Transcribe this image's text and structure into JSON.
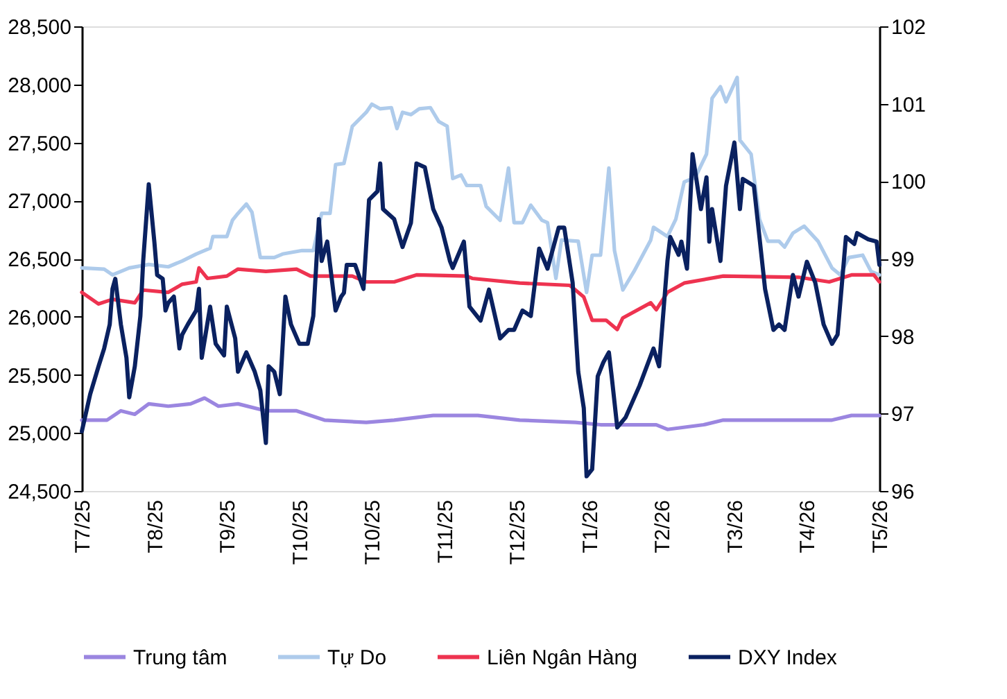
{
  "chart_data": {
    "type": "line",
    "xlim": [
      "2025-07-19",
      "2026-05-01"
    ],
    "xticks": [
      {
        "value": "2025-07-19",
        "label": "T7/25"
      },
      {
        "value": "2025-08-14",
        "label": "T8/25"
      },
      {
        "value": "2025-09-09",
        "label": "T9/25"
      },
      {
        "value": "2025-10-05",
        "label": "T10/25"
      },
      {
        "value": "2025-10-31",
        "label": "T10/25"
      },
      {
        "value": "2025-11-26",
        "label": "T11/25"
      },
      {
        "value": "2025-12-22",
        "label": "T12/25"
      },
      {
        "value": "2026-01-17",
        "label": "T1/26"
      },
      {
        "value": "2026-02-12",
        "label": "T2/26"
      },
      {
        "value": "2026-03-10",
        "label": "T3/26"
      },
      {
        "value": "2026-04-05",
        "label": "T4/26"
      },
      {
        "value": "2026-05-01",
        "label": "T5/26"
      }
    ],
    "ylim": [
      24500,
      28500
    ],
    "yticks": [
      {
        "value": 24500,
        "label": "24,500"
      },
      {
        "value": 25000,
        "label": "25,000"
      },
      {
        "value": 25500,
        "label": "25,500"
      },
      {
        "value": 26000,
        "label": "26,000"
      },
      {
        "value": 26500,
        "label": "26,500"
      },
      {
        "value": 27000,
        "label": "27,000"
      },
      {
        "value": 27500,
        "label": "27,500"
      },
      {
        "value": 28000,
        "label": "28,000"
      },
      {
        "value": 28500,
        "label": "28,500"
      }
    ],
    "y2lim": [
      96,
      102
    ],
    "y2ticks": [
      96,
      97,
      98,
      99,
      100,
      101,
      102
    ],
    "grid": false,
    "legend": "bottom",
    "marker": "none",
    "line_style": "solid",
    "series": [
      {
        "name": "Trung tâm",
        "color": "#9b86e0",
        "x": [
          "2025-07-19",
          "2025-07-28",
          "2025-08-02",
          "2025-08-07",
          "2025-08-12",
          "2025-08-19",
          "2025-08-27",
          "2025-09-01",
          "2025-09-06",
          "2025-09-13",
          "2025-09-23",
          "2025-10-04",
          "2025-10-14",
          "2025-10-29",
          "2025-11-08",
          "2025-11-22",
          "2025-12-08",
          "2025-12-23",
          "2026-01-12",
          "2026-01-21",
          "2026-02-10",
          "2026-02-14",
          "2026-02-27",
          "2026-03-06",
          "2026-04-01",
          "2026-04-14",
          "2026-04-21",
          "2026-05-01"
        ],
        "values": [
          25110,
          25110,
          25190,
          25160,
          25250,
          25230,
          25250,
          25300,
          25230,
          25250,
          25190,
          25190,
          25110,
          25090,
          25110,
          25150,
          25150,
          25110,
          25090,
          25070,
          25070,
          25030,
          25070,
          25110,
          25110,
          25110,
          25150,
          25150
        ]
      },
      {
        "name": "Tự Do",
        "color": "#aecbeb",
        "x": [
          "2025-07-19",
          "2025-07-27",
          "2025-07-30",
          "2025-08-05",
          "2025-08-12",
          "2025-08-19",
          "2025-08-24",
          "2025-08-29",
          "2025-09-03",
          "2025-09-04",
          "2025-09-09",
          "2025-09-11",
          "2025-09-13",
          "2025-09-16",
          "2025-09-18",
          "2025-09-21",
          "2025-09-26",
          "2025-09-29",
          "2025-10-06",
          "2025-10-10",
          "2025-10-13",
          "2025-10-16",
          "2025-10-18",
          "2025-10-21",
          "2025-10-24",
          "2025-10-29",
          "2025-10-31",
          "2025-11-03",
          "2025-11-07",
          "2025-11-09",
          "2025-11-11",
          "2025-11-14",
          "2025-11-17",
          "2025-11-21",
          "2025-11-24",
          "2025-11-27",
          "2025-11-29",
          "2025-12-02",
          "2025-12-04",
          "2025-12-09",
          "2025-12-11",
          "2025-12-16",
          "2025-12-19",
          "2025-12-21",
          "2025-12-24",
          "2025-12-27",
          "2025-12-31",
          "2026-01-02",
          "2026-01-05",
          "2026-01-07",
          "2026-01-13",
          "2026-01-16",
          "2026-01-18",
          "2026-01-21",
          "2026-01-24",
          "2026-01-26",
          "2026-01-29",
          "2026-02-02",
          "2026-02-08",
          "2026-02-09",
          "2026-02-14",
          "2026-02-17",
          "2026-02-20",
          "2026-02-24",
          "2026-02-28",
          "2026-03-02",
          "2026-03-05",
          "2026-03-07",
          "2026-03-11",
          "2026-03-12",
          "2026-03-16",
          "2026-03-19",
          "2026-03-22",
          "2026-03-26",
          "2026-03-28",
          "2026-03-31",
          "2026-04-04",
          "2026-04-09",
          "2026-04-14",
          "2026-04-17",
          "2026-04-20",
          "2026-04-25",
          "2026-04-28",
          "2026-05-01"
        ],
        "values": [
          26420,
          26410,
          26360,
          26420,
          26450,
          26430,
          26480,
          26540,
          26590,
          26690,
          26690,
          26830,
          26890,
          26970,
          26900,
          26510,
          26510,
          26540,
          26570,
          26570,
          26890,
          26890,
          27310,
          27320,
          27640,
          27760,
          27830,
          27790,
          27800,
          27620,
          27760,
          27740,
          27790,
          27800,
          27680,
          27640,
          27190,
          27220,
          27130,
          27130,
          26950,
          26830,
          27280,
          26810,
          26810,
          26960,
          26830,
          26810,
          26330,
          26660,
          26650,
          26210,
          26530,
          26530,
          27280,
          26570,
          26230,
          26390,
          26660,
          26770,
          26690,
          26840,
          27160,
          27200,
          27400,
          27880,
          27980,
          27850,
          28060,
          27520,
          27400,
          26840,
          26650,
          26650,
          26600,
          26720,
          26780,
          26650,
          26420,
          26360,
          26510,
          26530,
          26390,
          26360
        ]
      },
      {
        "name": "Liên Ngân Hàng",
        "color": "#ee3350",
        "x": [
          "2025-07-19",
          "2025-07-25",
          "2025-07-30",
          "2025-08-07",
          "2025-08-10",
          "2025-08-19",
          "2025-08-24",
          "2025-08-29",
          "2025-08-30",
          "2025-09-02",
          "2025-09-09",
          "2025-09-13",
          "2025-09-23",
          "2025-10-04",
          "2025-10-09",
          "2025-10-24",
          "2025-10-29",
          "2025-11-08",
          "2025-11-16",
          "2025-12-04",
          "2025-12-06",
          "2025-12-23",
          "2026-01-10",
          "2026-01-15",
          "2026-01-18",
          "2026-01-23",
          "2026-01-27",
          "2026-01-29",
          "2026-02-08",
          "2026-02-10",
          "2026-02-14",
          "2026-02-20",
          "2026-03-06",
          "2026-04-02",
          "2026-04-13",
          "2026-04-21",
          "2026-04-29",
          "2026-05-01"
        ],
        "values": [
          26210,
          26110,
          26150,
          26120,
          26230,
          26210,
          26280,
          26300,
          26420,
          26330,
          26350,
          26410,
          26390,
          26410,
          26350,
          26350,
          26300,
          26300,
          26360,
          26350,
          26330,
          26290,
          26270,
          26170,
          25970,
          25970,
          25890,
          25990,
          26120,
          26060,
          26210,
          26290,
          26350,
          26340,
          26300,
          26360,
          26360,
          26300
        ]
      },
      {
        "name": "DXY Index",
        "color": "#0a2160",
        "axis": "y2",
        "x": [
          "2025-07-19",
          "2025-07-22",
          "2025-07-25",
          "2025-07-27",
          "2025-07-29",
          "2025-07-30",
          "2025-07-31",
          "2025-08-02",
          "2025-08-04",
          "2025-08-05",
          "2025-08-07",
          "2025-08-09",
          "2025-08-10",
          "2025-08-12",
          "2025-08-14",
          "2025-08-15",
          "2025-08-17",
          "2025-08-18",
          "2025-08-19",
          "2025-08-21",
          "2025-08-23",
          "2025-08-24",
          "2025-08-26",
          "2025-08-29",
          "2025-08-30",
          "2025-08-31",
          "2025-09-03",
          "2025-09-05",
          "2025-09-08",
          "2025-09-09",
          "2025-09-12",
          "2025-09-13",
          "2025-09-16",
          "2025-09-19",
          "2025-09-21",
          "2025-09-23",
          "2025-09-24",
          "2025-09-26",
          "2025-09-28",
          "2025-09-30",
          "2025-10-02",
          "2025-10-05",
          "2025-10-08",
          "2025-10-10",
          "2025-10-12",
          "2025-10-13",
          "2025-10-15",
          "2025-10-18",
          "2025-10-20",
          "2025-10-21",
          "2025-10-22",
          "2025-10-25",
          "2025-10-28",
          "2025-10-30",
          "2025-11-02",
          "2025-11-03",
          "2025-11-04",
          "2025-11-08",
          "2025-11-11",
          "2025-11-14",
          "2025-11-16",
          "2025-11-19",
          "2025-11-22",
          "2025-11-25",
          "2025-11-28",
          "2025-11-29",
          "2025-12-03",
          "2025-12-05",
          "2025-12-09",
          "2025-12-12",
          "2025-12-16",
          "2025-12-19",
          "2025-12-21",
          "2025-12-24",
          "2025-12-27",
          "2025-12-30",
          "2026-01-02",
          "2026-01-06",
          "2026-01-08",
          "2026-01-11",
          "2026-01-13",
          "2026-01-15",
          "2026-01-16",
          "2026-01-18",
          "2026-01-20",
          "2026-01-22",
          "2026-01-24",
          "2026-01-25",
          "2026-01-27",
          "2026-01-30",
          "2026-02-04",
          "2026-02-09",
          "2026-02-11",
          "2026-02-14",
          "2026-02-15",
          "2026-02-18",
          "2026-02-19",
          "2026-02-21",
          "2026-02-23",
          "2026-02-26",
          "2026-02-28",
          "2026-03-01",
          "2026-03-02",
          "2026-03-05",
          "2026-03-07",
          "2026-03-10",
          "2026-03-12",
          "2026-03-13",
          "2026-03-17",
          "2026-03-21",
          "2026-03-24",
          "2026-03-26",
          "2026-03-28",
          "2026-03-31",
          "2026-04-02",
          "2026-04-05",
          "2026-04-08",
          "2026-04-11",
          "2026-04-14",
          "2026-04-16",
          "2026-04-19",
          "2026-04-22",
          "2026-04-23",
          "2026-04-27",
          "2026-04-30",
          "2026-05-01"
        ],
        "values": [
          96.77,
          97.25,
          97.61,
          97.84,
          98.15,
          98.61,
          98.74,
          98.15,
          97.72,
          97.21,
          97.61,
          98.26,
          98.97,
          99.96,
          99.22,
          98.79,
          98.74,
          98.33,
          98.43,
          98.51,
          97.84,
          98.02,
          98.15,
          98.33,
          98.61,
          97.72,
          98.38,
          97.9,
          97.75,
          98.38,
          97.97,
          97.54,
          97.79,
          97.54,
          97.3,
          96.62,
          97.61,
          97.54,
          97.25,
          98.51,
          98.15,
          97.9,
          97.9,
          98.26,
          99.51,
          98.97,
          99.22,
          98.33,
          98.51,
          98.56,
          98.92,
          98.92,
          98.61,
          99.76,
          99.87,
          100.23,
          99.64,
          99.51,
          99.15,
          99.46,
          100.23,
          100.18,
          99.64,
          99.4,
          98.97,
          98.88,
          99.22,
          98.38,
          98.2,
          98.6,
          97.97,
          98.08,
          98.08,
          98.33,
          98.26,
          99.13,
          98.87,
          99.4,
          99.4,
          98.69,
          97.54,
          97.07,
          96.19,
          96.28,
          97.48,
          97.66,
          97.79,
          97.48,
          96.82,
          96.95,
          97.36,
          97.84,
          97.61,
          98.97,
          99.28,
          99.05,
          99.22,
          98.87,
          100.35,
          99.64,
          100.05,
          99.22,
          99.64,
          98.97,
          99.94,
          100.5,
          99.64,
          100.03,
          99.94,
          98.61,
          98.08,
          98.15,
          98.08,
          98.79,
          98.51,
          98.96,
          98.69,
          98.15,
          97.9,
          98.02,
          99.28,
          99.19,
          99.33,
          99.25,
          99.22,
          98.92
        ]
      }
    ]
  }
}
